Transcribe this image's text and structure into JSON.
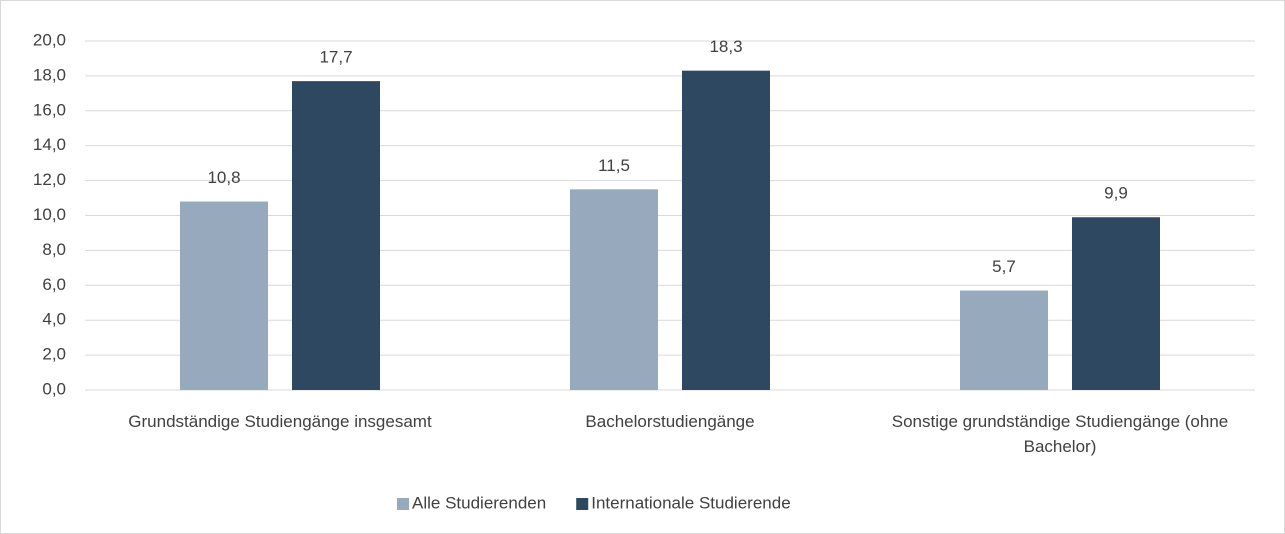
{
  "chart_data": {
    "type": "bar",
    "categories": [
      "Grundständige Studiengänge insgesamt",
      "Bachelorstudiengänge",
      "Sonstige grundständige Studiengänge (ohne Bachelor)"
    ],
    "series": [
      {
        "name": "Alle Studierenden",
        "color": "#97a9bd",
        "values": [
          10.8,
          11.5,
          5.7
        ],
        "value_labels": [
          "10,8",
          "11,5",
          "5,7"
        ]
      },
      {
        "name": "Internationale Studierende",
        "color": "#2f4861",
        "values": [
          17.7,
          18.3,
          9.9
        ],
        "value_labels": [
          "17,7",
          "18,3",
          "9,9"
        ]
      }
    ],
    "ylim": [
      0,
      20
    ],
    "yticks": [
      {
        "value": 0,
        "label": "0,0"
      },
      {
        "value": 2,
        "label": "2,0"
      },
      {
        "value": 4,
        "label": "4,0"
      },
      {
        "value": 6,
        "label": "6,0"
      },
      {
        "value": 8,
        "label": "8,0"
      },
      {
        "value": 10,
        "label": "10,0"
      },
      {
        "value": 12,
        "label": "12,0"
      },
      {
        "value": 14,
        "label": "14,0"
      },
      {
        "value": 16,
        "label": "16,0"
      },
      {
        "value": 18,
        "label": "18,0"
      },
      {
        "value": 20,
        "label": "20,0"
      }
    ],
    "grid": true,
    "legend": "bottom"
  }
}
